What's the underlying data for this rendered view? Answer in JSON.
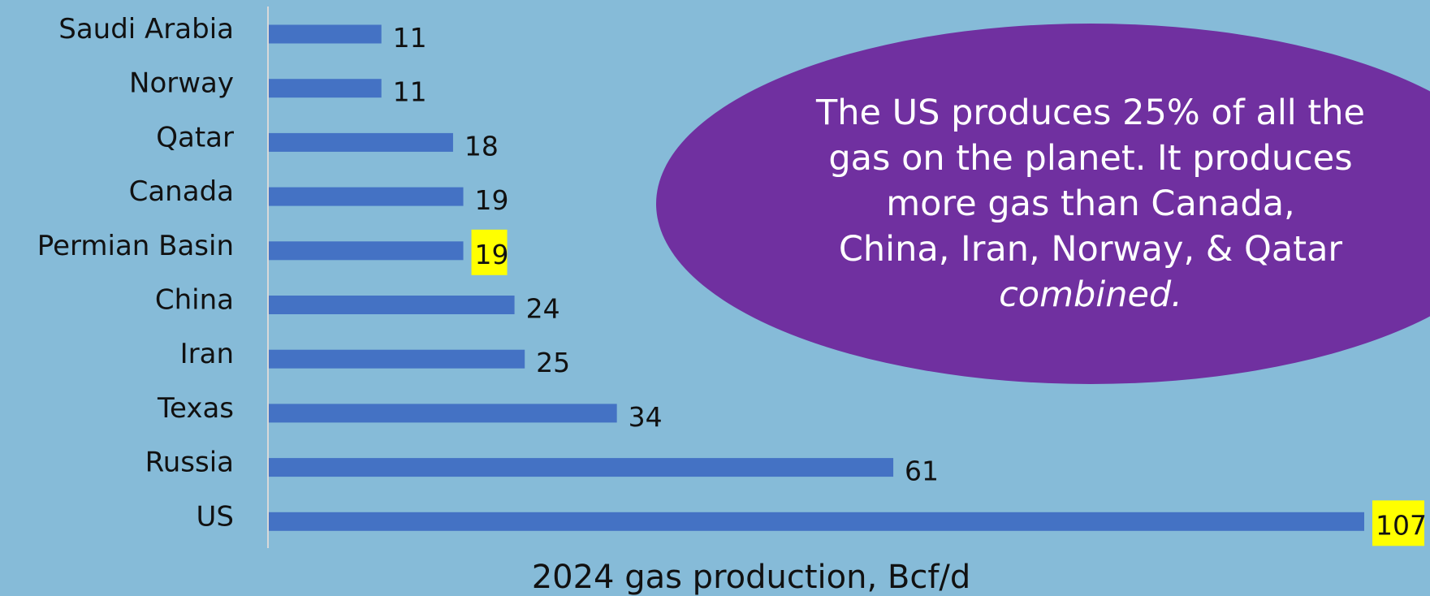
{
  "chart_data": {
    "type": "bar",
    "orientation": "horizontal",
    "categories": [
      "Saudi Arabia",
      "Norway",
      "Qatar",
      "Canada",
      "Permian Basin",
      "China",
      "Iran",
      "Texas",
      "Russia",
      "US"
    ],
    "values": [
      11,
      11,
      18,
      19,
      19,
      24,
      25,
      34,
      61,
      107
    ],
    "highlighted": [
      "Permian Basin",
      "US"
    ],
    "xlabel": "2024 gas production, Bcf/d",
    "ylabel": "",
    "xlim": [
      0,
      107
    ],
    "grid": false,
    "legend": "none"
  },
  "annotation": {
    "lines": [
      "The US produces 25% of all the",
      "gas on the planet. It produces",
      "more gas than Canada,",
      "China, Iran, Norway, & Qatar",
      "combined."
    ]
  },
  "colors": {
    "background": "#86bbd8",
    "bar": "#4472c4",
    "highlight": "#ffff00",
    "callout": "#7030a0",
    "callout_text": "#ffffff",
    "axis_line": "#d9d9d9"
  }
}
